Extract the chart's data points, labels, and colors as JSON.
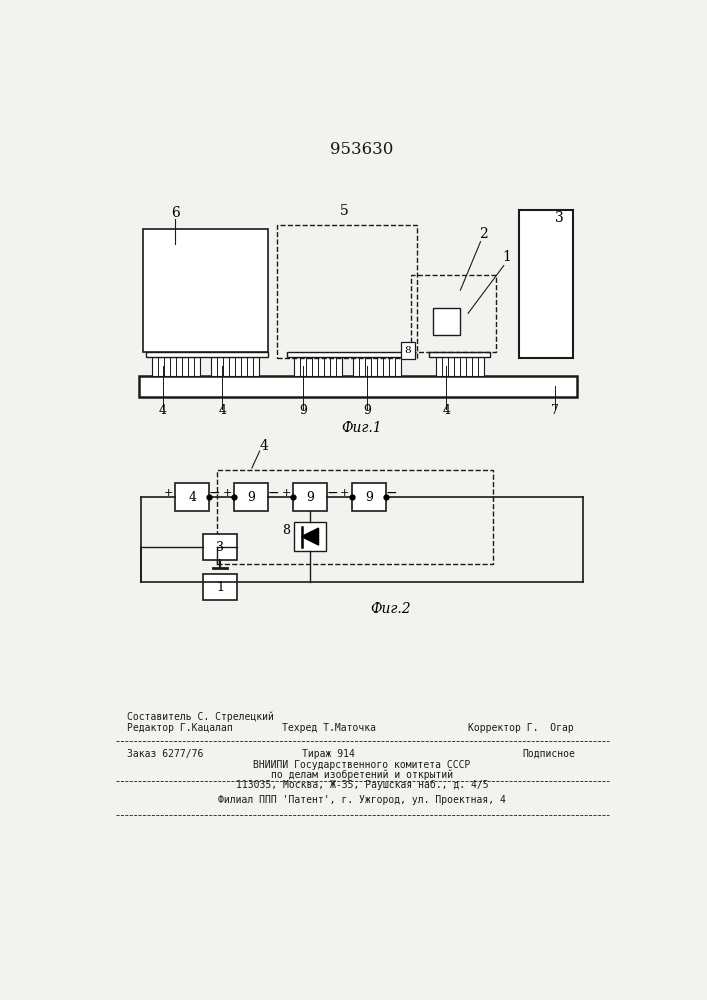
{
  "title": "953630",
  "fig1_label": "Фиг.1",
  "fig2_label": "Фиг.2",
  "bg_color": "#f2f2ee",
  "line_color": "#1a1a1a"
}
